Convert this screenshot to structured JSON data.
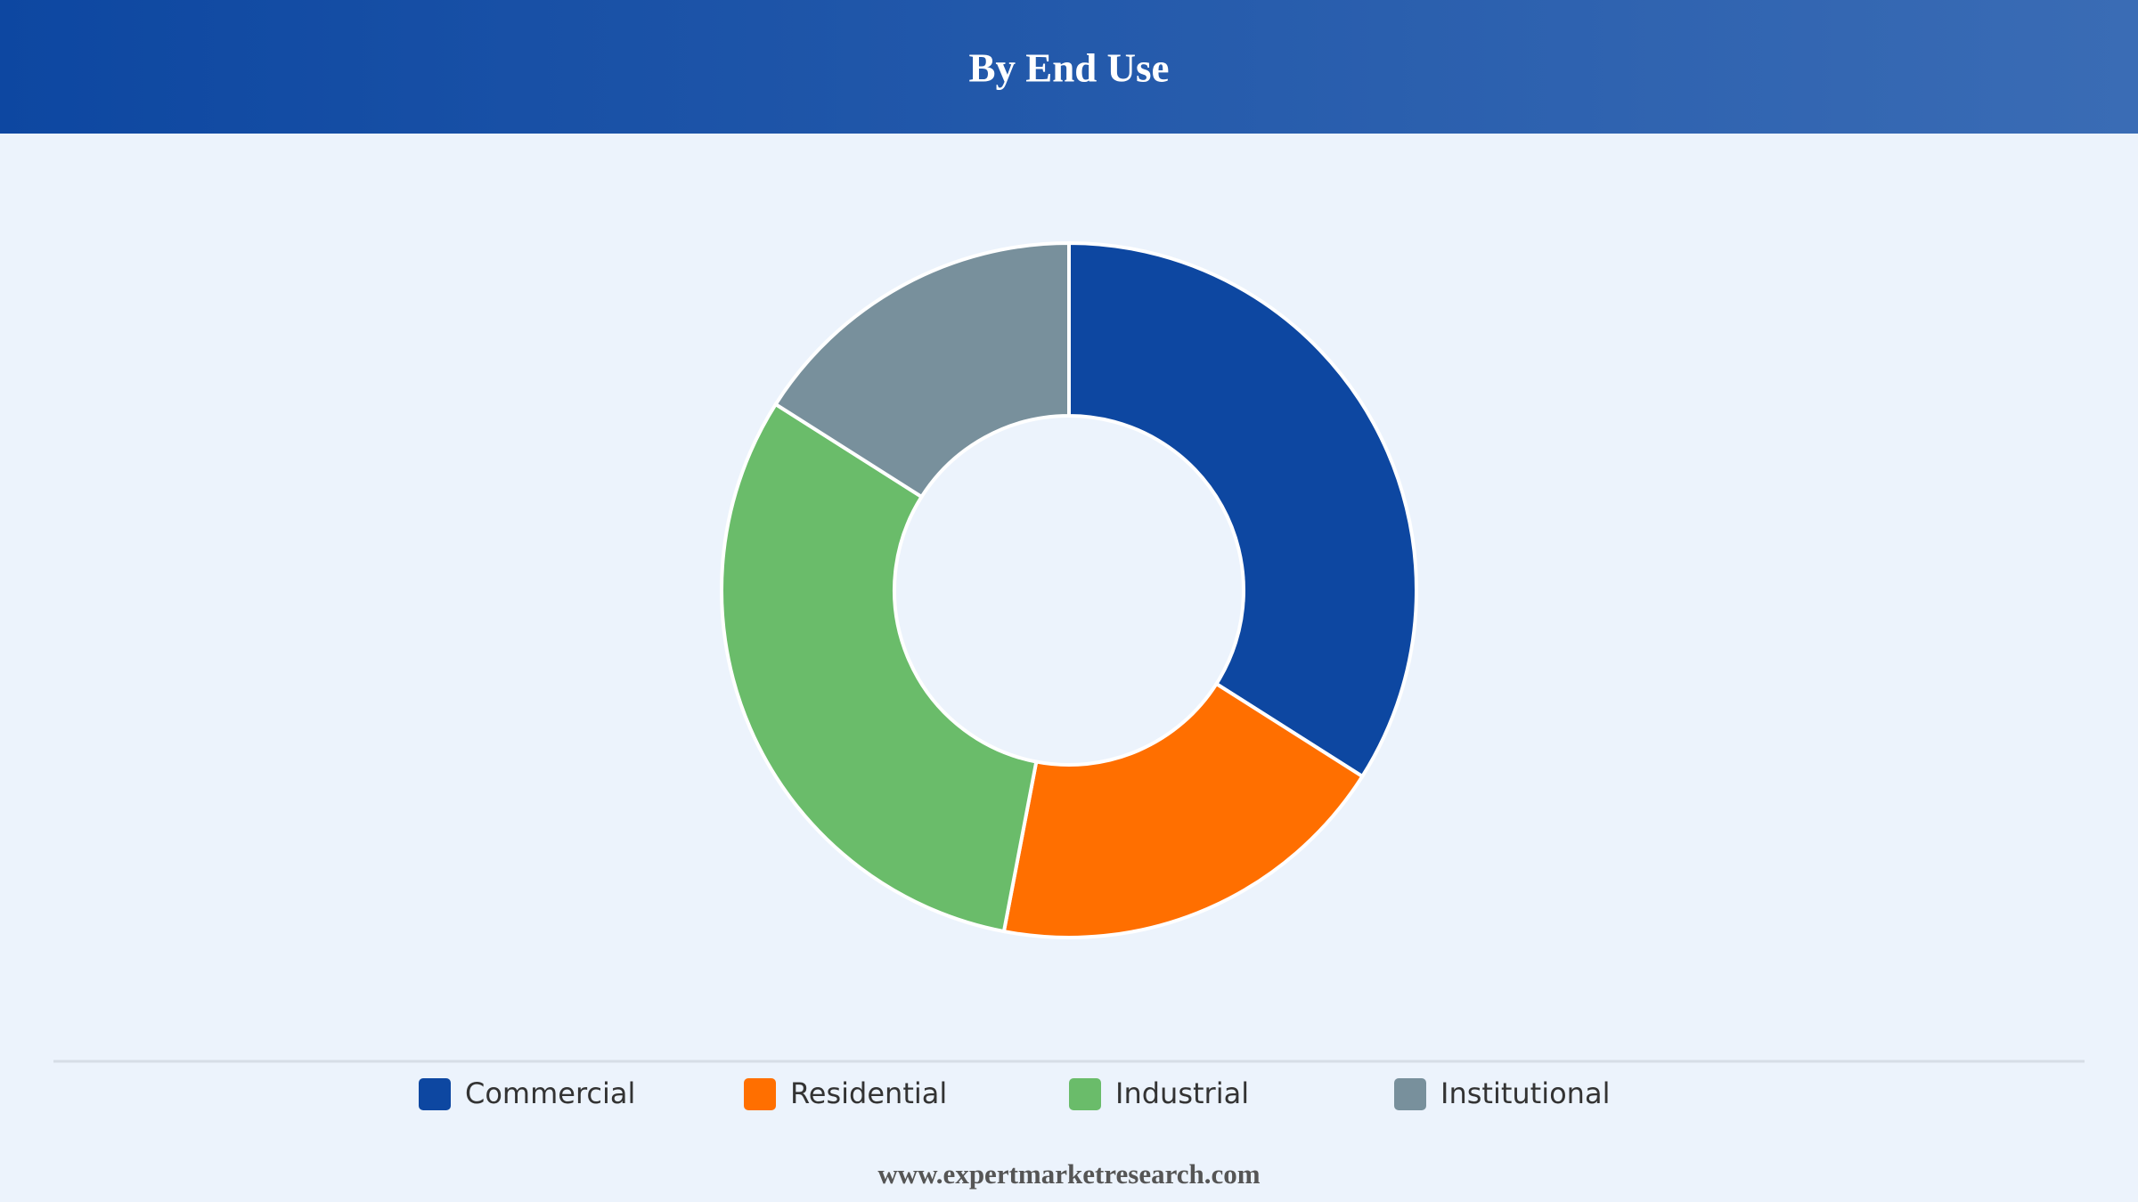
{
  "chart_data": {
    "type": "donut",
    "title": "By End Use",
    "categories": [
      "Commercial",
      "Residential",
      "Industrial",
      "Institutional"
    ],
    "values": [
      34,
      19,
      31,
      16
    ],
    "colors": [
      "#0d47a1",
      "#ff6f00",
      "#6abc6a",
      "#78909c"
    ],
    "legend": "bottom",
    "source": "www.expertmarketresearch.com"
  }
}
